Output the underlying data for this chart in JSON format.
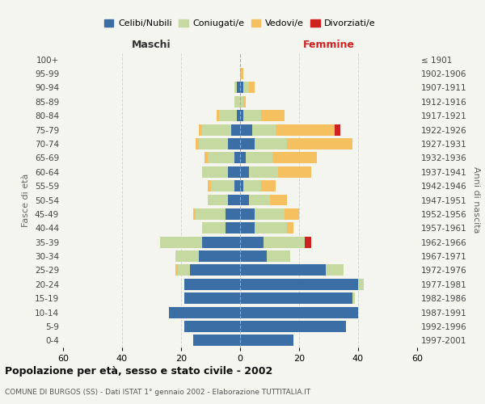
{
  "age_groups": [
    "0-4",
    "5-9",
    "10-14",
    "15-19",
    "20-24",
    "25-29",
    "30-34",
    "35-39",
    "40-44",
    "45-49",
    "50-54",
    "55-59",
    "60-64",
    "65-69",
    "70-74",
    "75-79",
    "80-84",
    "85-89",
    "90-94",
    "95-99",
    "100+"
  ],
  "birth_years": [
    "1997-2001",
    "1992-1996",
    "1987-1991",
    "1982-1986",
    "1977-1981",
    "1972-1976",
    "1967-1971",
    "1962-1966",
    "1957-1961",
    "1952-1956",
    "1947-1951",
    "1942-1946",
    "1937-1941",
    "1932-1936",
    "1927-1931",
    "1922-1926",
    "1917-1921",
    "1912-1916",
    "1907-1911",
    "1902-1906",
    "≤ 1901"
  ],
  "maschi": {
    "celibi": [
      16,
      19,
      24,
      19,
      19,
      17,
      14,
      13,
      5,
      5,
      4,
      2,
      4,
      2,
      4,
      3,
      1,
      0,
      1,
      0,
      0
    ],
    "coniugati": [
      0,
      0,
      0,
      0,
      0,
      4,
      8,
      14,
      8,
      10,
      7,
      8,
      9,
      9,
      10,
      10,
      6,
      2,
      1,
      0,
      0
    ],
    "vedovi": [
      0,
      0,
      0,
      0,
      0,
      1,
      0,
      0,
      0,
      1,
      0,
      1,
      0,
      1,
      1,
      1,
      1,
      0,
      0,
      0,
      0
    ],
    "divorziati": [
      0,
      0,
      0,
      0,
      0,
      0,
      0,
      0,
      0,
      0,
      0,
      0,
      0,
      0,
      0,
      0,
      0,
      0,
      0,
      0,
      0
    ]
  },
  "femmine": {
    "nubili": [
      18,
      36,
      40,
      38,
      40,
      29,
      9,
      8,
      5,
      5,
      3,
      1,
      3,
      2,
      5,
      4,
      1,
      0,
      1,
      0,
      0
    ],
    "coniugate": [
      0,
      0,
      0,
      1,
      2,
      6,
      8,
      14,
      11,
      10,
      7,
      6,
      10,
      9,
      11,
      8,
      6,
      1,
      2,
      0,
      0
    ],
    "vedove": [
      0,
      0,
      0,
      0,
      0,
      0,
      0,
      0,
      2,
      5,
      6,
      5,
      11,
      15,
      22,
      20,
      8,
      1,
      2,
      1,
      0
    ],
    "divorziate": [
      0,
      0,
      0,
      0,
      0,
      0,
      0,
      2,
      0,
      0,
      0,
      0,
      0,
      0,
      0,
      2,
      0,
      0,
      0,
      0,
      0
    ]
  },
  "colors": {
    "celibi": "#3a6ea5",
    "coniugati": "#c5d9a0",
    "vedovi": "#f5c060",
    "divorziati": "#cc2222"
  },
  "xlim": 60,
  "title": "Popolazione per età, sesso e stato civile - 2002",
  "subtitle": "COMUNE DI BURGOS (SS) - Dati ISTAT 1° gennaio 2002 - Elaborazione TUTTITALIA.IT",
  "ylabel_left": "Fasce di età",
  "ylabel_right": "Anni di nascita",
  "xlabel_left": "Maschi",
  "xlabel_right": "Femmine",
  "legend_labels": [
    "Celibi/Nubili",
    "Coniugati/e",
    "Vedovi/e",
    "Divorziati/e"
  ],
  "bg_color": "#f5f5f0"
}
